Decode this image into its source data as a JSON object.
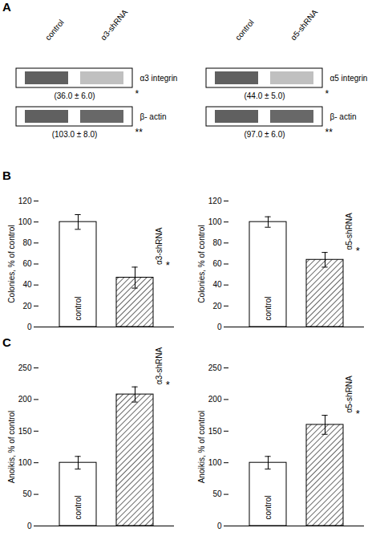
{
  "chart_data": [
    {
      "type": "blot",
      "title": "A",
      "categories": [
        "control",
        "α3-shRNA"
      ],
      "row_labels": [
        "α3 integrin",
        "β- actin"
      ],
      "colors": [
        "#606060",
        "#c0c0c0",
        "#606060",
        "#686868"
      ],
      "annotations": [
        "(36.0 ± 6.0)",
        "(103.0 ± 8.0)"
      ],
      "significance": [
        "*",
        "**"
      ]
    },
    {
      "type": "blot",
      "categories": [
        "control",
        "α5-shRNA"
      ],
      "row_labels": [
        "α5 integrin",
        "β- actin"
      ],
      "colors": [
        "#606060",
        "#c0c0c0",
        "#606060",
        "#686868"
      ],
      "annotations": [
        "(44.0 ± 5.0)",
        "(97.0 ± 6.0)"
      ],
      "significance": [
        "*",
        "**"
      ]
    },
    {
      "type": "bar",
      "title": "B",
      "categories": [
        "control",
        "α3-shRNA"
      ],
      "values": [
        100,
        47
      ],
      "errors": [
        7,
        10
      ],
      "ylabel": "Colonies, % of control",
      "ylim": [
        0,
        120
      ],
      "yticks": [
        0,
        20,
        40,
        60,
        80,
        100,
        120
      ],
      "tick_labels": "y",
      "annotations": [
        "*"
      ]
    },
    {
      "type": "bar",
      "categories": [
        "control",
        "α5-shRNA"
      ],
      "values": [
        100,
        64
      ],
      "errors": [
        5,
        7
      ],
      "ylabel": "Colonies, % of control",
      "ylim": [
        0,
        120
      ],
      "yticks": [
        0,
        20,
        40,
        60,
        80,
        100,
        120
      ],
      "tick_labels": "y",
      "annotations": [
        "*"
      ]
    },
    {
      "type": "bar",
      "title": "C",
      "categories": [
        "control",
        "α3-shRNA"
      ],
      "values": [
        100,
        208
      ],
      "errors": [
        10,
        12
      ],
      "ylabel": "Anoikis, % of control",
      "ylim": [
        0,
        250
      ],
      "yticks": [
        0,
        50,
        100,
        150,
        200,
        250
      ],
      "tick_labels": "y",
      "annotations": [
        "*"
      ]
    },
    {
      "type": "bar",
      "categories": [
        "control",
        "α5-shRNA"
      ],
      "values": [
        100,
        160
      ],
      "errors": [
        10,
        15
      ],
      "ylabel": "Anoikis, % of control",
      "ylim": [
        0,
        250
      ],
      "yticks": [
        0,
        50,
        100,
        150,
        200,
        250
      ],
      "tick_labels": "y",
      "annotations": [
        "*"
      ]
    }
  ]
}
